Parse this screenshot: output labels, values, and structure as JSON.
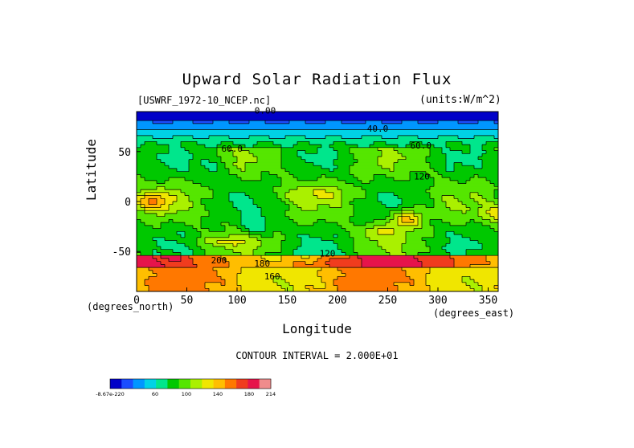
{
  "chart_data": {
    "type": "heatmap",
    "title": "Upward Solar Radiation Flux",
    "file_label": "[USWRF_1972-10_NCEP.nc]",
    "units_label": "(units:W/m^2)",
    "xlabel": "Longitude",
    "ylabel": "Latitude",
    "x_unit_label": "(degrees_east)",
    "y_unit_label": "(degrees_north)",
    "xlim": [
      0,
      360
    ],
    "ylim": [
      -90,
      90
    ],
    "x_ticks": [
      0,
      50,
      100,
      150,
      200,
      250,
      300,
      350
    ],
    "y_ticks": [
      50,
      0,
      -50
    ],
    "contour_interval_text": "CONTOUR INTERVAL = 2.000E+01",
    "contour_labels": [
      {
        "text": "0.00",
        "lon": 128,
        "lat": 88
      },
      {
        "text": "40.0",
        "lon": 240,
        "lat": 70
      },
      {
        "text": "60.0",
        "lon": 95,
        "lat": 50
      },
      {
        "text": "60.0",
        "lon": 283,
        "lat": 53
      },
      {
        "text": "120",
        "lon": 284,
        "lat": 22
      },
      {
        "text": "120",
        "lon": 190,
        "lat": -55
      },
      {
        "text": "200",
        "lon": 82,
        "lat": -62
      },
      {
        "text": "180",
        "lon": 125,
        "lat": -65
      },
      {
        "text": "160",
        "lon": 135,
        "lat": -78
      }
    ],
    "colorbar": {
      "levels": [
        "-8.67e-220",
        "60",
        "100",
        "140",
        "180",
        "214"
      ],
      "colors": [
        "#0000c8",
        "#1a4cff",
        "#0096ff",
        "#00d2e6",
        "#00e68c",
        "#00c800",
        "#55e600",
        "#aaf000",
        "#f0e600",
        "#ffbe00",
        "#ff7800",
        "#f03c1e",
        "#e6144b",
        "#f08c8c"
      ]
    }
  }
}
